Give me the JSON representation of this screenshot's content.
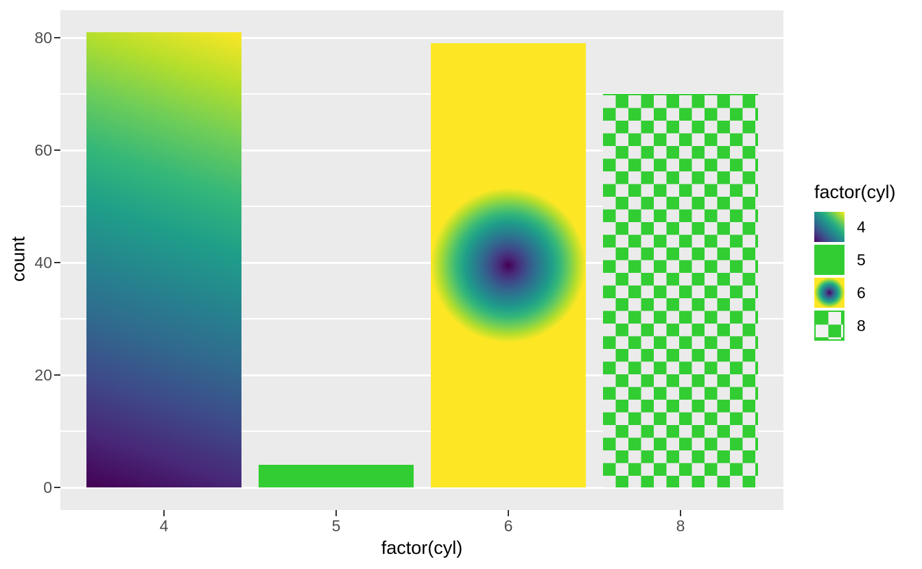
{
  "figure": {
    "background": "#FFFFFF",
    "panel_background": "#EBEBEB",
    "grid_color": "#FFFFFF",
    "axis_text_color": "#4D4D4D",
    "tick_mark_color": "#333333"
  },
  "chart_data": {
    "type": "bar",
    "title": "",
    "xlabel": "factor(cyl)",
    "ylabel": "count",
    "categories": [
      "4",
      "5",
      "6",
      "8"
    ],
    "values": [
      81,
      4,
      79,
      70
    ],
    "ylim": [
      0,
      85
    ],
    "grid": "major and minor horizontal gridlines, white on grey panel",
    "legend_position": "right",
    "y_ticks": {
      "labels": [
        "0",
        "20",
        "40",
        "60",
        "80"
      ],
      "values": [
        0,
        20,
        40,
        60,
        80
      ]
    },
    "y_minor_values": [
      10,
      30,
      50,
      70
    ],
    "bar_fills": [
      {
        "category": "4",
        "fill": "viridis linear gradient, bottom-left #440154 to top-right #FDE725"
      },
      {
        "category": "5",
        "fill": "solid limegreen #32CD32"
      },
      {
        "category": "6",
        "fill": "viridis radial gradient, centre #440154 to edge #FDE725 on yellow"
      },
      {
        "category": "8",
        "fill": "limegreen checkerboard pattern"
      }
    ],
    "viridis_palette": [
      "#440154",
      "#482878",
      "#3E4A89",
      "#31688E",
      "#26828E",
      "#1F9E89",
      "#35B779",
      "#6DCD59",
      "#B4DE2C",
      "#FDE725"
    ],
    "green": "#32CD32",
    "yellow": "#FDE725"
  },
  "axes": {
    "x": {
      "title": "factor(cyl)",
      "ticks": [
        "4",
        "5",
        "6",
        "8"
      ]
    },
    "y": {
      "title": "count",
      "ticks": [
        "0",
        "20",
        "40",
        "60",
        "80"
      ]
    }
  },
  "legend": {
    "title": "factor(cyl)",
    "entries": [
      {
        "label": "4",
        "swatch": "viridis-linear-gradient-swatch"
      },
      {
        "label": "5",
        "swatch": "limegreen-solid-swatch"
      },
      {
        "label": "6",
        "swatch": "viridis-radial-gradient-swatch"
      },
      {
        "label": "8",
        "swatch": "limegreen-checkerboard-swatch"
      }
    ]
  }
}
